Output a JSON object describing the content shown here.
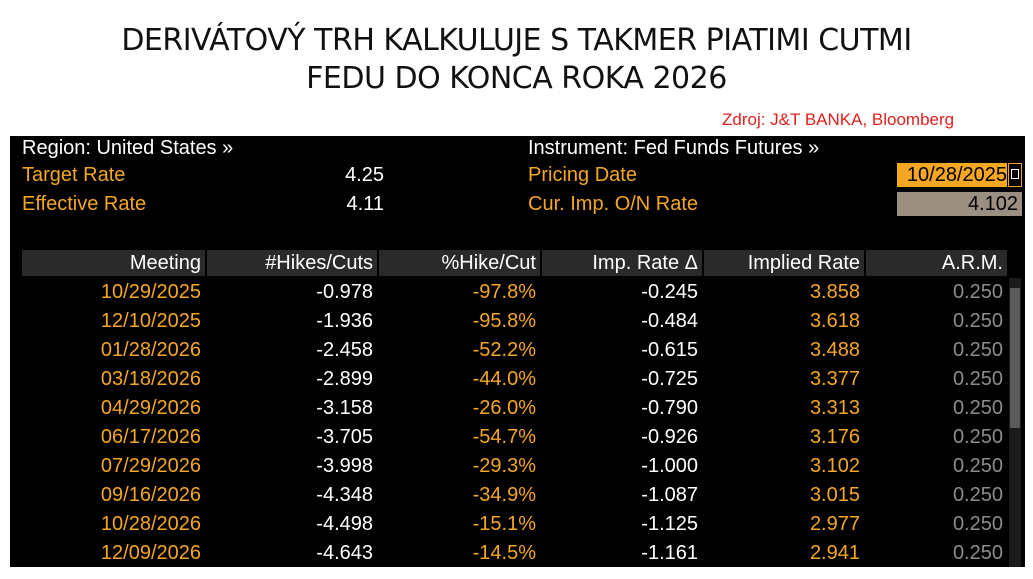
{
  "title": {
    "line1": "DERIVÁTOVÝ TRH KALKULUJE S TAKMER PIATIMI CUTMI",
    "line2": "FEDU DO KONCA ROKA 2026"
  },
  "source": "Zdroj: J&T BANKA, Bloomberg",
  "header": {
    "region": "Region: United States »",
    "instrument": "Instrument: Fed Funds Futures »",
    "target_rate_label": "Target Rate",
    "target_rate_value": "4.25",
    "effective_rate_label": "Effective Rate",
    "effective_rate_value": "4.11",
    "pricing_date_label": "Pricing Date",
    "pricing_date_value": "10/28/2025",
    "cur_imp_label": "Cur. Imp. O/N Rate",
    "cur_imp_value": "4.102"
  },
  "colors": {
    "accent_orange": "#f5a623",
    "background": "#000000",
    "source_red": "#e0211d",
    "arm_gray": "#8c8c8c"
  },
  "chart_data": {
    "type": "table",
    "columns": [
      "Meeting",
      "#Hikes/Cuts",
      "%Hike/Cut",
      "Imp. Rate Δ",
      "Implied Rate",
      "A.R.M."
    ],
    "rows": [
      [
        "10/29/2025",
        "-0.978",
        "-97.8%",
        "-0.245",
        "3.858",
        "0.250"
      ],
      [
        "12/10/2025",
        "-1.936",
        "-95.8%",
        "-0.484",
        "3.618",
        "0.250"
      ],
      [
        "01/28/2026",
        "-2.458",
        "-52.2%",
        "-0.615",
        "3.488",
        "0.250"
      ],
      [
        "03/18/2026",
        "-2.899",
        "-44.0%",
        "-0.725",
        "3.377",
        "0.250"
      ],
      [
        "04/29/2026",
        "-3.158",
        "-26.0%",
        "-0.790",
        "3.313",
        "0.250"
      ],
      [
        "06/17/2026",
        "-3.705",
        "-54.7%",
        "-0.926",
        "3.176",
        "0.250"
      ],
      [
        "07/29/2026",
        "-3.998",
        "-29.3%",
        "-1.000",
        "3.102",
        "0.250"
      ],
      [
        "09/16/2026",
        "-4.348",
        "-34.9%",
        "-1.087",
        "3.015",
        "0.250"
      ],
      [
        "10/28/2026",
        "-4.498",
        "-15.1%",
        "-1.125",
        "2.977",
        "0.250"
      ],
      [
        "12/09/2026",
        "-4.643",
        "-14.5%",
        "-1.161",
        "2.941",
        "0.250"
      ]
    ]
  }
}
